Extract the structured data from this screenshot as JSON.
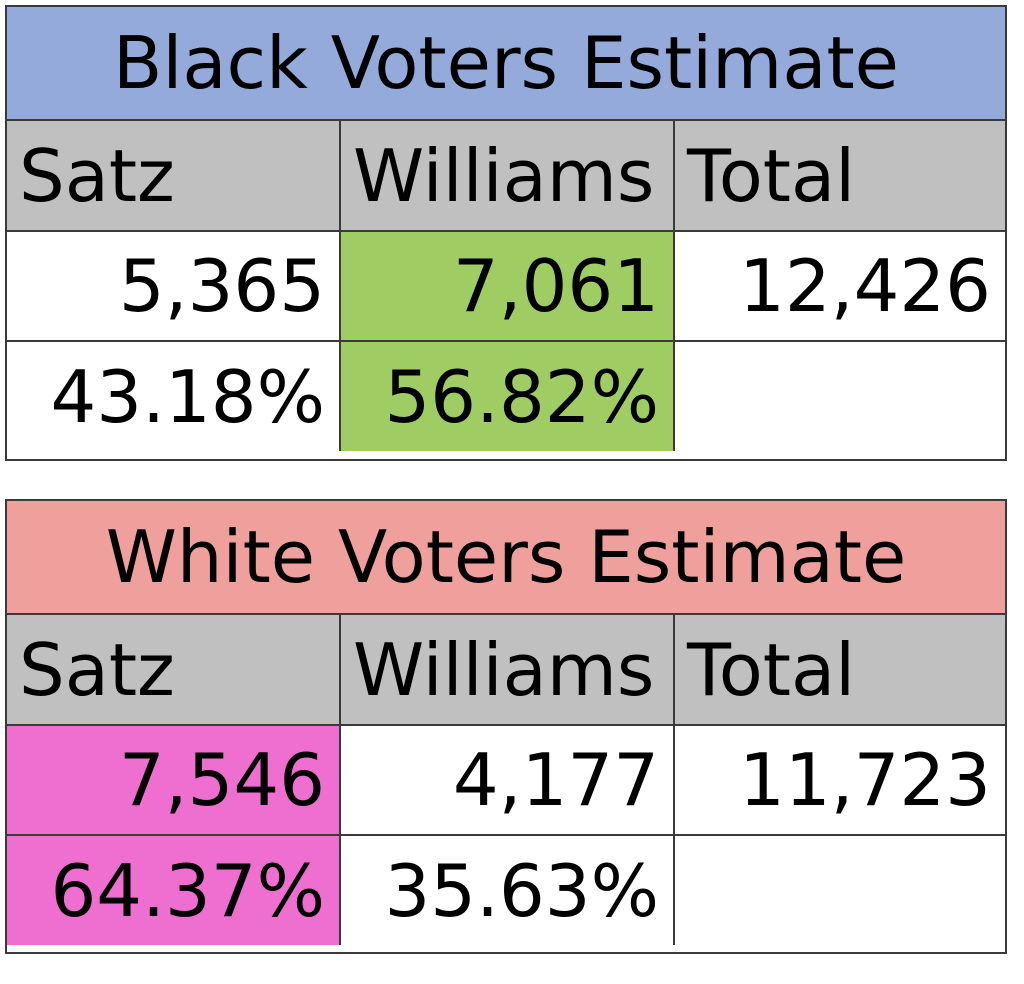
{
  "colors": {
    "black_title_bg": "#94aadb",
    "white_title_bg": "#f0a09c",
    "header_bg": "#c0c0c0",
    "williams_win_bg": "#a0cc64",
    "satz_win_bg": "#ee6fcf",
    "plain_bg": "#ffffff"
  },
  "black_estimate": {
    "title": "Black Voters Estimate",
    "headers": [
      "Satz",
      "Williams",
      "Total"
    ],
    "votes": [
      "5,365",
      "7,061",
      "12,426"
    ],
    "percents": [
      "43.18%",
      "56.82%",
      ""
    ]
  },
  "white_estimate": {
    "title": "White Voters Estimate",
    "headers": [
      "Satz",
      "Williams",
      "Total"
    ],
    "votes": [
      "7,546",
      "4,177",
      "11,723"
    ],
    "percents": [
      "64.37%",
      "35.63%",
      ""
    ]
  }
}
